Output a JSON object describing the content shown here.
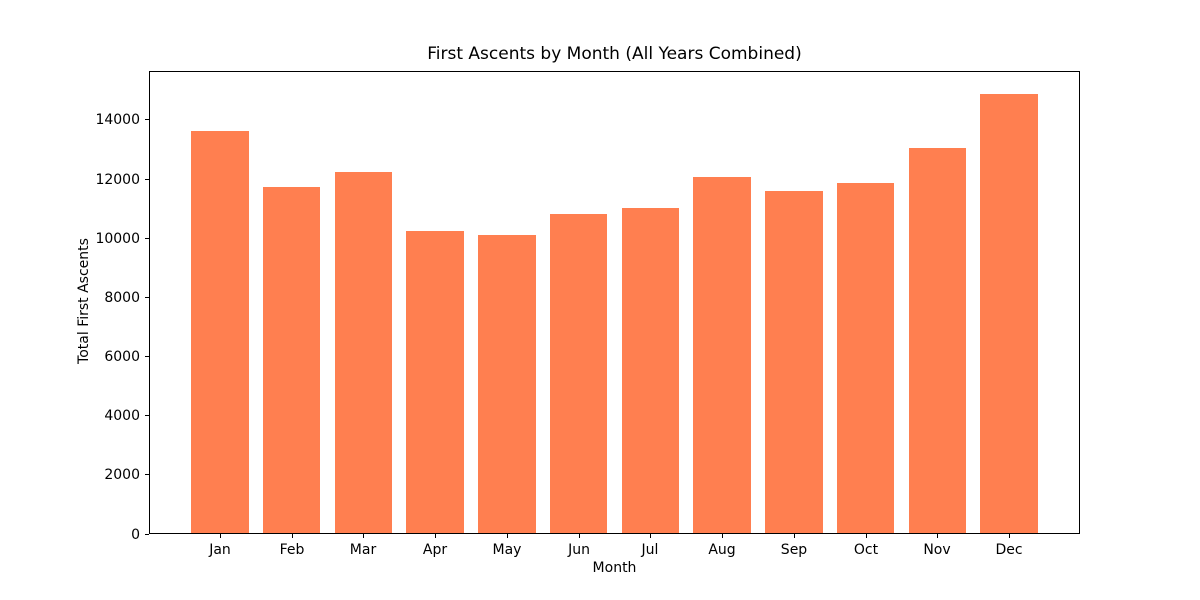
{
  "chart_data": {
    "type": "bar",
    "title": "First Ascents by Month (All Years Combined)",
    "xlabel": "Month",
    "ylabel": "Total First Ascents",
    "categories": [
      "Jan",
      "Feb",
      "Mar",
      "Apr",
      "May",
      "Jun",
      "Jul",
      "Aug",
      "Sep",
      "Oct",
      "Nov",
      "Dec"
    ],
    "values": [
      13600,
      11710,
      12210,
      10220,
      10090,
      10780,
      11000,
      12050,
      11570,
      11840,
      13040,
      14850
    ],
    "ylim": [
      0,
      15600
    ],
    "yticks": [
      0,
      2000,
      4000,
      6000,
      8000,
      10000,
      12000,
      14000
    ],
    "bar_color": "#ff7f50",
    "background_color": "#ffffff",
    "grid": false,
    "legend_position": "none"
  }
}
